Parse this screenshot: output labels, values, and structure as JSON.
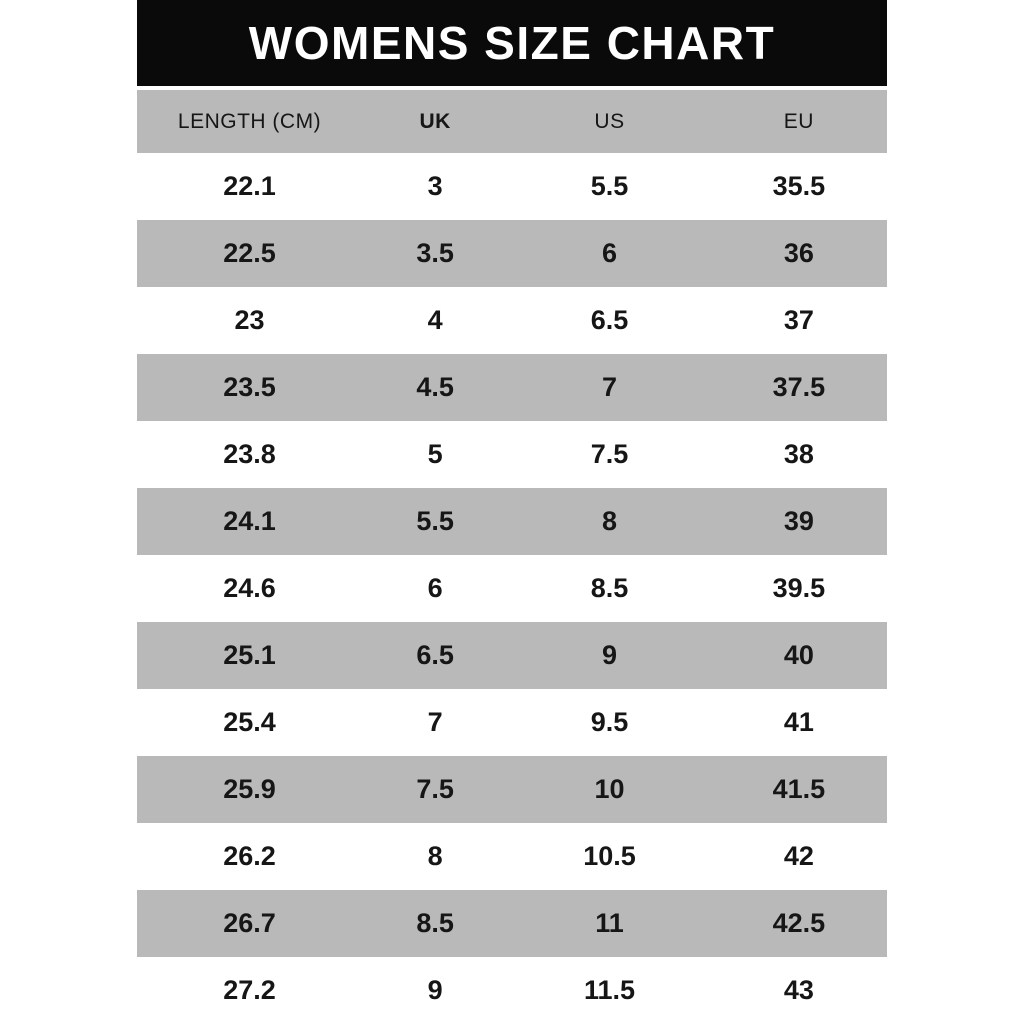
{
  "chart_data": {
    "type": "table",
    "title": "WOMENS SIZE CHART",
    "columns": [
      "LENGTH (CM)",
      "UK",
      "US",
      "EU"
    ],
    "rows": [
      [
        "22.1",
        "3",
        "5.5",
        "35.5"
      ],
      [
        "22.5",
        "3.5",
        "6",
        "36"
      ],
      [
        "23",
        "4",
        "6.5",
        "37"
      ],
      [
        "23.5",
        "4.5",
        "7",
        "37.5"
      ],
      [
        "23.8",
        "5",
        "7.5",
        "38"
      ],
      [
        "24.1",
        "5.5",
        "8",
        "39"
      ],
      [
        "24.6",
        "6",
        "8.5",
        "39.5"
      ],
      [
        "25.1",
        "6.5",
        "9",
        "40"
      ],
      [
        "25.4",
        "7",
        "9.5",
        "41"
      ],
      [
        "25.9",
        "7.5",
        "10",
        "41.5"
      ],
      [
        "26.2",
        "8",
        "10.5",
        "42"
      ],
      [
        "26.7",
        "8.5",
        "11",
        "42.5"
      ],
      [
        "27.2",
        "9",
        "11.5",
        "43"
      ]
    ],
    "layout": {
      "stripe_pattern": "alternating, first data row white",
      "legend": "none",
      "grid": "off"
    }
  },
  "colors": {
    "header_bg": "#0a0a0a",
    "header_text": "#ffffff",
    "stripe": "#b9b9b9",
    "text": "#161616"
  }
}
